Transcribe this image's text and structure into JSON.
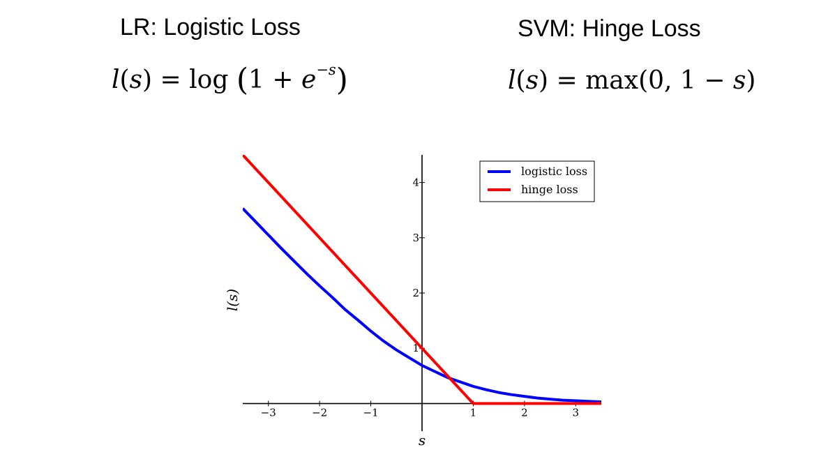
{
  "titles": {
    "left": "LR: Logistic Loss",
    "right": "SVM: Hinge Loss"
  },
  "formulas": {
    "left": {
      "lhs_fn": "l",
      "lhs_arg": "s",
      "eq": "=",
      "op": "log",
      "one": "1",
      "plus": "+",
      "base": "e",
      "exponent": "−s"
    },
    "right": {
      "lhs_fn": "l",
      "lhs_arg": "s",
      "eq": "=",
      "op": "max",
      "zero": "0",
      "one": "1",
      "minus": "−",
      "arg": "s"
    }
  },
  "chart_data": {
    "type": "line",
    "xlabel": "s",
    "ylabel": "l(s)",
    "xlim": [
      -3.5,
      3.5
    ],
    "ylim": [
      -0.5,
      4.5
    ],
    "xticks": [
      -3,
      -2,
      -1,
      1,
      2,
      3
    ],
    "xtick_labels": [
      "−3",
      "−2",
      "−1",
      "1",
      "2",
      "3"
    ],
    "yticks": [
      1,
      2,
      3,
      4
    ],
    "ytick_labels": [
      "1",
      "2",
      "3",
      "4"
    ],
    "grid": false,
    "legend": "top-right",
    "series": [
      {
        "name": "logistic loss",
        "color": "#0000ff",
        "x": [
          -3.5,
          -3.25,
          -3.0,
          -2.75,
          -2.5,
          -2.25,
          -2.0,
          -1.75,
          -1.5,
          -1.25,
          -1.0,
          -0.75,
          -0.5,
          -0.25,
          0.0,
          0.25,
          0.5,
          0.75,
          1.0,
          1.25,
          1.5,
          1.75,
          2.0,
          2.25,
          2.5,
          2.75,
          3.0,
          3.25,
          3.5
        ],
        "y": [
          3.53,
          3.29,
          3.05,
          2.81,
          2.58,
          2.35,
          2.13,
          1.92,
          1.7,
          1.51,
          1.31,
          1.13,
          0.97,
          0.83,
          0.69,
          0.58,
          0.47,
          0.39,
          0.31,
          0.25,
          0.2,
          0.16,
          0.13,
          0.1,
          0.08,
          0.06,
          0.05,
          0.04,
          0.03
        ]
      },
      {
        "name": "hinge loss",
        "color": "#ff0000",
        "x": [
          -3.5,
          1.0,
          3.5
        ],
        "y": [
          4.5,
          0.0,
          0.0
        ]
      }
    ]
  }
}
